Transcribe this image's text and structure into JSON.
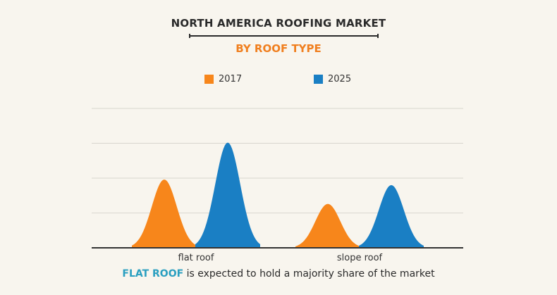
{
  "header": {
    "title": "NORTH AMERICA ROOFING MARKET",
    "subtitle": "BY ROOF TYPE"
  },
  "footer": {
    "highlight": "FLAT ROOF",
    "text": " is expected to hold a majority share of the market"
  },
  "colors": {
    "series_2017": "#f7861b",
    "series_2025": "#1a7fc4",
    "accent": "#f07f1f",
    "highlight": "#2a9fc0"
  },
  "chart_data": {
    "type": "area",
    "categories": [
      "flat roof",
      "slope roof"
    ],
    "series": [
      {
        "name": "2017",
        "values": [
          98,
          63
        ]
      },
      {
        "name": "2025",
        "values": [
          151,
          90
        ]
      }
    ],
    "ylim": [
      0,
      200
    ],
    "grid": true,
    "legend": "top-center",
    "xlabel": "",
    "ylabel": ""
  }
}
